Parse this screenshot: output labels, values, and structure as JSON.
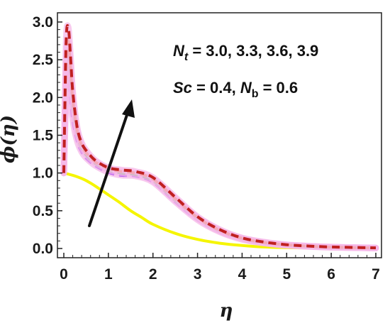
{
  "chart_data": {
    "type": "line",
    "title": "",
    "xlabel": "η",
    "ylabel": "ϕ(η)",
    "xlim": [
      0,
      7
    ],
    "ylim": [
      0,
      3
    ],
    "x_ticks": [
      "0",
      "1",
      "2",
      "3",
      "4",
      "5",
      "6",
      "7"
    ],
    "y_ticks": [
      "0.0",
      "0.5",
      "1.0",
      "1.5",
      "2.0",
      "2.5",
      "3.0"
    ],
    "grid": false,
    "annotations": {
      "line1": {
        "sym": "N",
        "sub": "t",
        "rest": " = 3.0,  3.3,  3.6,  3.9"
      },
      "line2": {
        "sym1": "Sc",
        "mid": " = 0.4, ",
        "sym2": "N",
        "sub2": "b",
        "rest2": " = 0.6"
      },
      "arrow": "increasing Nt"
    },
    "series": [
      {
        "color": "#f5f500",
        "dash": "solid",
        "halo": false,
        "x": [
          0,
          0.25,
          0.5,
          0.75,
          1.0,
          1.25,
          1.5,
          1.75,
          2.0,
          2.5,
          3.0,
          3.5,
          4.0,
          4.5,
          5.0,
          5.5,
          6.0,
          7.0
        ],
        "y": [
          1.0,
          0.96,
          0.9,
          0.81,
          0.71,
          0.61,
          0.5,
          0.41,
          0.32,
          0.2,
          0.12,
          0.07,
          0.04,
          0.02,
          0.012,
          0.007,
          0.004,
          0.002
        ]
      },
      {
        "color": "#a23cf0",
        "dash": "dashed",
        "halo": true,
        "x": [
          0,
          0.05,
          0.1,
          0.15,
          0.2,
          0.3,
          0.4,
          0.5,
          0.7,
          1.0,
          1.3,
          1.6,
          2.0,
          2.5,
          3.0,
          3.5,
          4.0,
          4.5,
          5.0,
          5.5,
          6.0,
          7.0
        ],
        "y": [
          1.0,
          2.0,
          2.35,
          2.0,
          1.7,
          1.42,
          1.28,
          1.2,
          1.1,
          1.01,
          0.97,
          0.96,
          0.88,
          0.62,
          0.38,
          0.22,
          0.12,
          0.07,
          0.04,
          0.025,
          0.015,
          0.005
        ]
      },
      {
        "color": "#4cc44c",
        "dash": "dashed",
        "halo": true,
        "x": [
          0,
          0.05,
          0.1,
          0.15,
          0.2,
          0.3,
          0.4,
          0.5,
          0.7,
          1.0,
          1.3,
          1.6,
          2.0,
          2.5,
          3.0,
          3.5,
          4.0,
          4.5,
          5.0,
          5.5,
          6.0,
          7.0
        ],
        "y": [
          1.0,
          2.2,
          2.55,
          2.2,
          1.85,
          1.5,
          1.33,
          1.24,
          1.13,
          1.04,
          1.0,
          0.98,
          0.9,
          0.64,
          0.4,
          0.23,
          0.13,
          0.075,
          0.045,
          0.028,
          0.017,
          0.006
        ]
      },
      {
        "color": "#f07828",
        "dash": "dashed",
        "halo": true,
        "x": [
          0,
          0.05,
          0.1,
          0.15,
          0.2,
          0.3,
          0.4,
          0.5,
          0.7,
          1.0,
          1.3,
          1.6,
          2.0,
          2.5,
          3.0,
          3.5,
          4.0,
          4.5,
          5.0,
          5.5,
          6.0,
          7.0
        ],
        "y": [
          1.0,
          2.45,
          2.75,
          2.4,
          1.98,
          1.56,
          1.37,
          1.27,
          1.15,
          1.06,
          1.02,
          1.0,
          0.92,
          0.66,
          0.41,
          0.24,
          0.135,
          0.08,
          0.048,
          0.03,
          0.018,
          0.007
        ]
      },
      {
        "color": "#c02020",
        "dash": "dashed",
        "halo": true,
        "x": [
          0,
          0.05,
          0.1,
          0.15,
          0.2,
          0.3,
          0.4,
          0.5,
          0.7,
          1.0,
          1.3,
          1.6,
          2.0,
          2.5,
          3.0,
          3.5,
          4.0,
          4.5,
          5.0,
          5.5,
          6.0,
          7.0
        ],
        "y": [
          1.0,
          2.7,
          2.93,
          2.55,
          2.08,
          1.6,
          1.4,
          1.3,
          1.17,
          1.07,
          1.04,
          1.02,
          0.94,
          0.68,
          0.42,
          0.25,
          0.14,
          0.085,
          0.05,
          0.032,
          0.02,
          0.008
        ]
      }
    ]
  }
}
